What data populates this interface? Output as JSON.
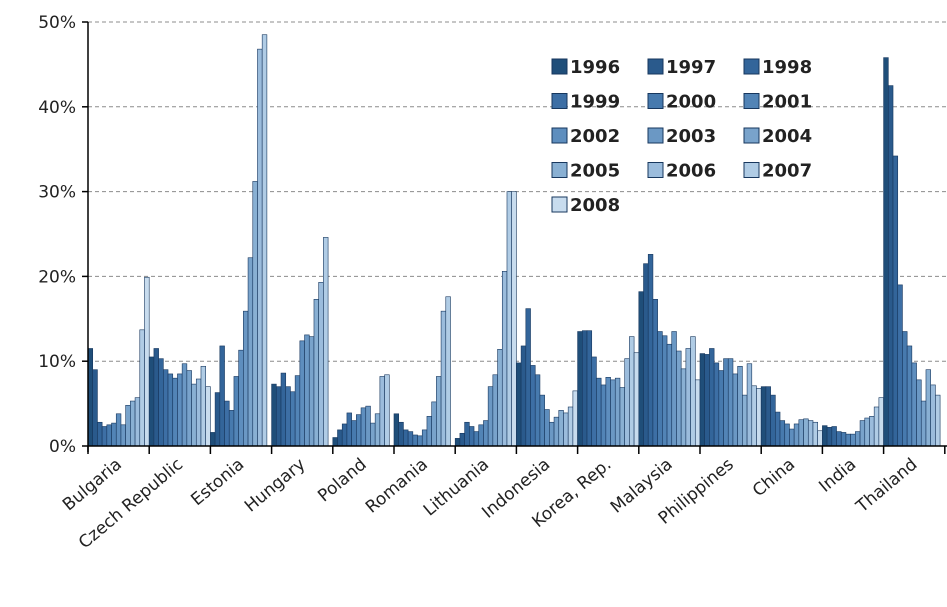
{
  "chart_data": {
    "type": "bar",
    "ylim": [
      0,
      50
    ],
    "y_ticks": [
      "0%",
      "10%",
      "20%",
      "30%",
      "40%",
      "50%"
    ],
    "grid": "horizontal dashed",
    "legend_placement": "top-center",
    "categories": [
      "Bulgaria",
      "Czech Republic",
      "Estonia",
      "Hungary",
      "Poland",
      "Romania",
      "Lithuania",
      "Indonesia",
      "Korea, Rep.",
      "Malaysia",
      "Philippines",
      "China",
      "India",
      "Thailand"
    ],
    "series_names": [
      "1996",
      "1997",
      "1998",
      "1999",
      "2000",
      "2001",
      "2002",
      "2003",
      "2004",
      "2005",
      "2006",
      "2007",
      "2008"
    ],
    "colors": [
      "#1f4e79",
      "#2a5a8c",
      "#33659a",
      "#3d6fa5",
      "#477aae",
      "#5284b6",
      "#5e8ebe",
      "#6b98c4",
      "#79a3cb",
      "#89b0d3",
      "#9bbcdc",
      "#b0cce5",
      "#c8dcee"
    ],
    "values": {
      "Bulgaria": [
        11.5,
        9.0,
        2.8,
        2.3,
        2.5,
        2.7,
        3.8,
        2.5,
        4.8,
        5.3,
        5.7,
        13.7,
        19.9
      ],
      "Czech Republic": [
        10.5,
        11.5,
        10.3,
        9.0,
        8.5,
        8.0,
        8.5,
        9.7,
        8.9,
        7.3,
        7.9,
        9.4,
        7.0
      ],
      "Estonia": [
        1.6,
        6.3,
        11.8,
        5.3,
        4.2,
        8.2,
        11.3,
        15.9,
        22.2,
        31.2,
        46.8,
        48.5,
        0
      ],
      "Hungary": [
        7.3,
        7.0,
        8.6,
        7.0,
        6.4,
        8.3,
        12.4,
        13.1,
        12.9,
        17.3,
        19.3,
        24.6,
        0
      ],
      "Poland": [
        1.0,
        1.9,
        2.6,
        3.9,
        3.0,
        3.7,
        4.5,
        4.7,
        2.7,
        3.8,
        8.2,
        8.4,
        0
      ],
      "Romania": [
        3.8,
        2.8,
        1.9,
        1.7,
        1.3,
        1.2,
        1.9,
        3.5,
        5.2,
        8.2,
        15.9,
        17.6,
        0
      ],
      "Lithuania": [
        0.9,
        1.5,
        2.8,
        2.3,
        1.7,
        2.5,
        3.0,
        7.0,
        8.4,
        11.4,
        20.6,
        30.0,
        30.0
      ],
      "Indonesia": [
        9.8,
        11.8,
        16.2,
        9.5,
        8.4,
        6.0,
        4.3,
        2.8,
        3.4,
        4.2,
        3.9,
        4.6,
        6.5
      ],
      "Korea, Rep.": [
        13.5,
        13.6,
        13.6,
        10.5,
        8.0,
        7.2,
        8.1,
        7.8,
        8.0,
        6.9,
        10.3,
        12.9,
        11.0
      ],
      "Malaysia": [
        18.2,
        21.5,
        22.6,
        17.3,
        13.5,
        13.0,
        12.0,
        13.5,
        11.2,
        9.1,
        11.5,
        12.9,
        7.8
      ],
      "Philippines": [
        10.9,
        10.8,
        11.5,
        9.8,
        8.9,
        10.3,
        10.3,
        8.5,
        9.4,
        6.0,
        9.7,
        7.1,
        6.8
      ],
      "China": [
        7.0,
        7.0,
        6.0,
        4.0,
        3.0,
        2.6,
        2.0,
        2.6,
        3.1,
        3.2,
        3.0,
        2.8,
        1.8
      ],
      "India": [
        2.4,
        2.2,
        2.3,
        1.7,
        1.6,
        1.4,
        1.4,
        1.7,
        3.0,
        3.3,
        3.5,
        4.6,
        5.7
      ],
      "Thailand": [
        45.8,
        42.5,
        34.2,
        19.0,
        13.5,
        11.8,
        9.8,
        7.8,
        5.3,
        9.0,
        7.2,
        6.0,
        0
      ]
    }
  }
}
